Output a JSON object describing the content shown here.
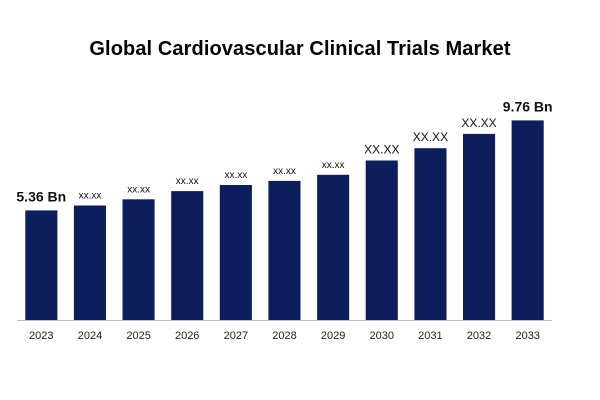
{
  "chart_data": {
    "type": "bar",
    "title": "Global Cardiovascular Clinical Trials Market",
    "xlabel": "",
    "ylabel": "",
    "ylim": [
      0,
      11
    ],
    "grid": false,
    "categories": [
      "2023",
      "2024",
      "2025",
      "2026",
      "2027",
      "2028",
      "2029",
      "2030",
      "2031",
      "2032",
      "2033"
    ],
    "values": [
      5.36,
      5.6,
      5.9,
      6.3,
      6.6,
      6.8,
      7.1,
      7.8,
      8.4,
      9.1,
      9.76
    ],
    "data_labels": [
      "5.36 Bn",
      "xx.xx",
      "xx.xx",
      "xx.xx",
      "xx.xx",
      "xx.xx",
      "xx.xx",
      "XX.XX",
      "XX.XX",
      "XX.XX",
      "9.76 Bn"
    ],
    "bar_color": "#0d1e5c"
  }
}
